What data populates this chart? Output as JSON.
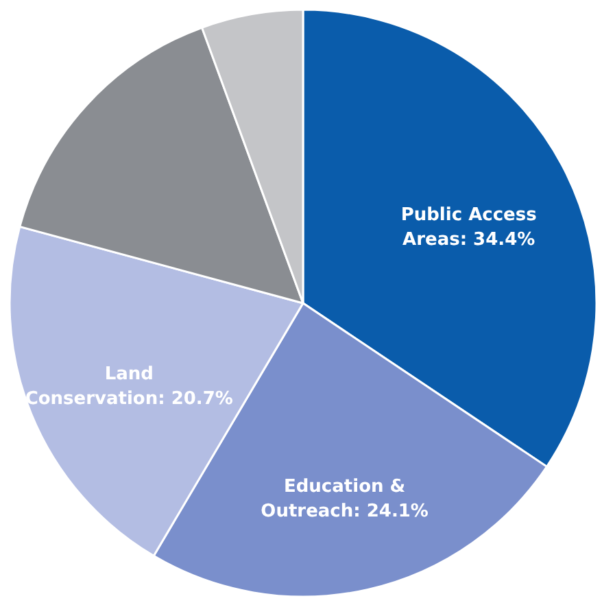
{
  "chart_data": {
    "type": "pie",
    "categories": [
      "Public Access Areas",
      "Education & Outreach",
      "Land Conservation",
      null,
      null
    ],
    "values": [
      34.4,
      24.1,
      20.7,
      15.2,
      5.6
    ],
    "colors": [
      "#0a5cab",
      "#7a8fcc",
      "#b3bde3",
      "#8a8d92",
      "#c4c5c8"
    ],
    "value_labels": [
      "34.4%",
      "24.1%",
      "20.7%",
      null,
      null
    ]
  }
}
